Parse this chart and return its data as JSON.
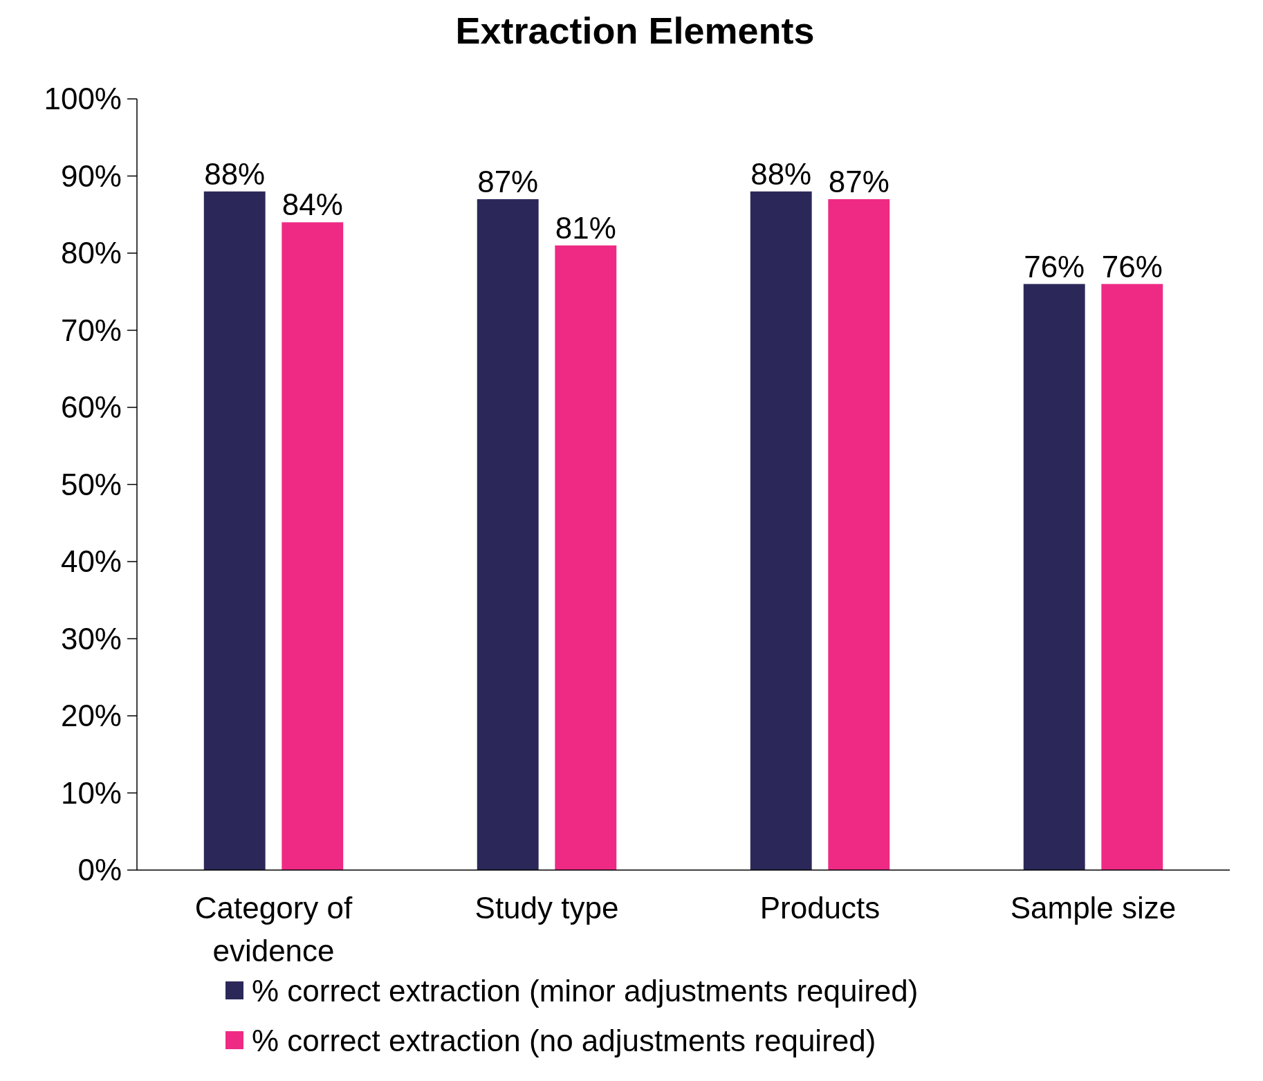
{
  "chart_data": {
    "type": "bar",
    "title": "Extraction Elements",
    "categories": [
      "Category of evidence",
      "Study type",
      "Products",
      "Sample size"
    ],
    "series": [
      {
        "name": "% correct extraction (minor adjustments required)",
        "color": "#2b2859",
        "values": [
          88,
          87,
          88,
          76
        ],
        "value_labels": [
          "88%",
          "87%",
          "88%",
          "76%"
        ]
      },
      {
        "name": "% correct extraction (no adjustments required)",
        "color": "#ee2a85",
        "values": [
          84,
          81,
          87,
          76
        ],
        "value_labels": [
          "84%",
          "81%",
          "87%",
          "76%"
        ]
      }
    ],
    "ylim": [
      0,
      100
    ],
    "yticks": [
      {
        "value": 0,
        "label": "0%"
      },
      {
        "value": 10,
        "label": "10%"
      },
      {
        "value": 20,
        "label": "20%"
      },
      {
        "value": 30,
        "label": "30%"
      },
      {
        "value": 40,
        "label": "40%"
      },
      {
        "value": 50,
        "label": "50%"
      },
      {
        "value": 60,
        "label": "60%"
      },
      {
        "value": 70,
        "label": "70%"
      },
      {
        "value": 80,
        "label": "80%"
      },
      {
        "value": 90,
        "label": "90%"
      },
      {
        "value": 100,
        "label": "100%"
      }
    ],
    "grid": false,
    "legend": "bottom"
  }
}
